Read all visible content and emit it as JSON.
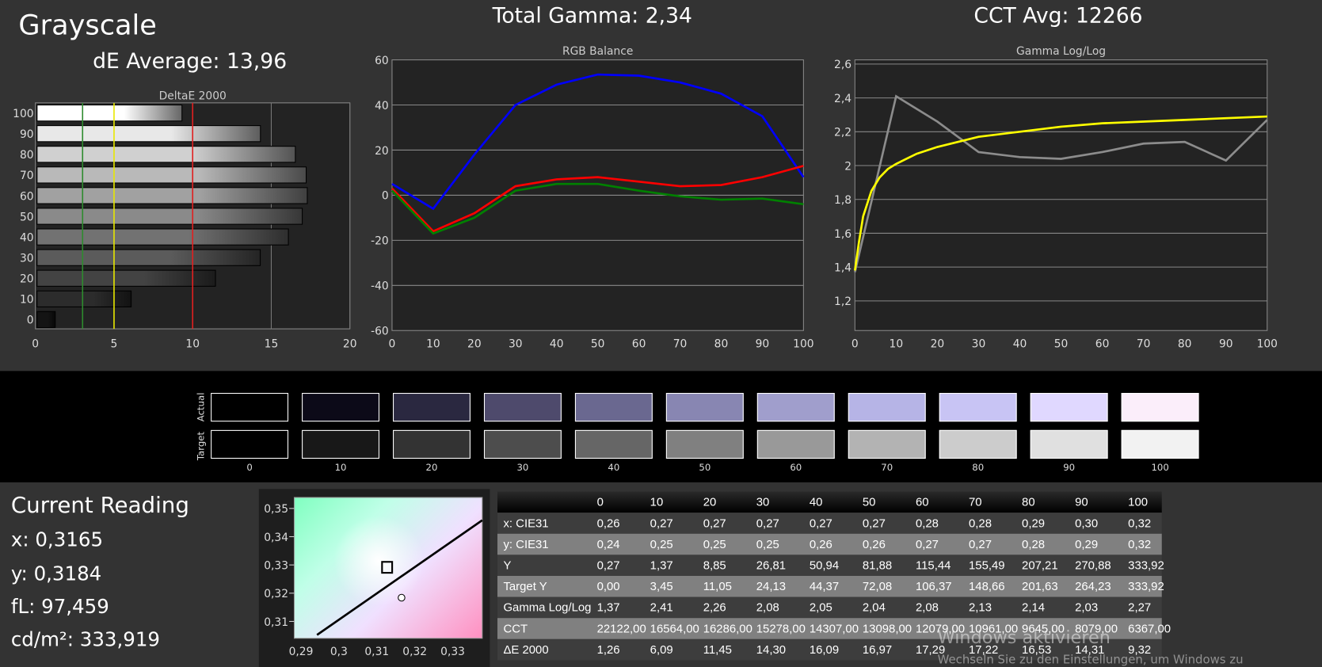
{
  "header": {
    "title": "Grayscale",
    "de_average": "dE Average: 13,96",
    "total_gamma": "Total Gamma: 2,34",
    "cct_avg": "CCT Avg: 12266"
  },
  "chart_data": [
    {
      "type": "bar",
      "orientation": "horizontal",
      "title": "DeltaE 2000",
      "categories": [
        "0",
        "10",
        "20",
        "30",
        "40",
        "50",
        "60",
        "70",
        "80",
        "90",
        "100"
      ],
      "values": [
        1.26,
        6.09,
        11.45,
        14.3,
        16.09,
        16.97,
        17.29,
        17.22,
        16.53,
        14.31,
        9.32
      ],
      "xlim": [
        0,
        20
      ],
      "xticks": [
        "0",
        "5",
        "10",
        "15",
        "20"
      ],
      "threshold_lines": [
        {
          "value": 3,
          "color": "#2e8b2e"
        },
        {
          "value": 5,
          "color": "#e8e800"
        },
        {
          "value": 10,
          "color": "#e02020"
        }
      ]
    },
    {
      "type": "line",
      "title": "RGB Balance",
      "x": [
        0,
        10,
        20,
        30,
        40,
        50,
        60,
        70,
        80,
        90,
        100
      ],
      "xlim": [
        0,
        100
      ],
      "ylim": [
        -60,
        60
      ],
      "xticks": [
        "0",
        "10",
        "20",
        "30",
        "40",
        "50",
        "60",
        "70",
        "80",
        "90",
        "100"
      ],
      "yticks": [
        "60",
        "40",
        "20",
        "0",
        "-20",
        "-40",
        "-60"
      ],
      "grid": true,
      "series": [
        {
          "color": "#0000ff",
          "values": [
            5,
            -6,
            18,
            40,
            49,
            53.5,
            53,
            50,
            45,
            35,
            8
          ]
        },
        {
          "color": "#ff0000",
          "values": [
            3,
            -16,
            -8,
            4,
            7,
            8,
            6,
            4,
            4.5,
            8,
            13
          ]
        },
        {
          "color": "#008000",
          "values": [
            2,
            -17,
            -10,
            2,
            5,
            5,
            2,
            -0.5,
            -2,
            -1.5,
            -4
          ]
        }
      ]
    },
    {
      "type": "line",
      "title": "Gamma Log/Log",
      "xlim": [
        0,
        100
      ],
      "ylim": [
        1.0,
        2.6
      ],
      "xticks": [
        "0",
        "10",
        "20",
        "30",
        "40",
        "50",
        "60",
        "70",
        "80",
        "90",
        "100"
      ],
      "yticks": [
        "2,6",
        "2,4",
        "2,2",
        "2",
        "1,8",
        "1,6",
        "1,4",
        "1,2"
      ],
      "grid": true,
      "series": [
        {
          "color": "#8c8c8c",
          "x": [
            0,
            10,
            20,
            30,
            40,
            50,
            60,
            70,
            80,
            90,
            100
          ],
          "values": [
            1.37,
            2.41,
            2.26,
            2.08,
            2.05,
            2.04,
            2.08,
            2.13,
            2.14,
            2.03,
            2.27
          ]
        },
        {
          "color": "#ffff00",
          "x": [
            0,
            1,
            2,
            4,
            6,
            8,
            10,
            15,
            20,
            30,
            40,
            50,
            60,
            70,
            80,
            90,
            100
          ],
          "values": [
            1.38,
            1.55,
            1.7,
            1.85,
            1.93,
            1.98,
            2.01,
            2.07,
            2.11,
            2.17,
            2.2,
            2.23,
            2.25,
            2.26,
            2.27,
            2.28,
            2.29
          ]
        }
      ]
    },
    {
      "type": "scatter",
      "title": "",
      "xlim": [
        0.285,
        0.34
      ],
      "ylim": [
        0.305,
        0.352
      ],
      "xticks": [
        "0,29",
        "0,3",
        "0,31",
        "0,32",
        "0,33"
      ],
      "yticks": [
        "0,35",
        "0,34",
        "0,33",
        "0,32",
        "0,31"
      ],
      "target": {
        "x": 0.3127,
        "y": 0.329
      },
      "measured": {
        "x": 0.3165,
        "y": 0.3184
      }
    }
  ],
  "swatches": {
    "actual_label": "Actual",
    "target_label": "Target",
    "levels": [
      "0",
      "10",
      "20",
      "30",
      "40",
      "50",
      "60",
      "70",
      "80",
      "90",
      "100"
    ],
    "actual": [
      "#000000",
      "#0c0a18",
      "#2a2840",
      "#4e4a6c",
      "#6a6890",
      "#8886b2",
      "#a09ecc",
      "#b6b4e6",
      "#c8c4f4",
      "#e0d8ff",
      "#fbeefa"
    ],
    "target": [
      "#000000",
      "#181818",
      "#333333",
      "#4d4d4d",
      "#666666",
      "#808080",
      "#999999",
      "#b3b3b3",
      "#cccccc",
      "#e0e0e0",
      "#f2f2f2"
    ]
  },
  "reading": {
    "title": "Current Reading",
    "x": "x: 0,3165",
    "y": "y: 0,3184",
    "fl": "fL: 97,459",
    "cdm2": "cd/m²: 333,919"
  },
  "table": {
    "headers": [
      "",
      "0",
      "10",
      "20",
      "30",
      "40",
      "50",
      "60",
      "70",
      "80",
      "90",
      "100"
    ],
    "rows": [
      [
        "x: CIE31",
        "0,26",
        "0,27",
        "0,27",
        "0,27",
        "0,27",
        "0,27",
        "0,28",
        "0,28",
        "0,29",
        "0,30",
        "0,32"
      ],
      [
        "y: CIE31",
        "0,24",
        "0,25",
        "0,25",
        "0,25",
        "0,26",
        "0,26",
        "0,27",
        "0,27",
        "0,28",
        "0,29",
        "0,32"
      ],
      [
        "Y",
        "0,27",
        "1,37",
        "8,85",
        "26,81",
        "50,94",
        "81,88",
        "115,44",
        "155,49",
        "207,21",
        "270,88",
        "333,92"
      ],
      [
        "Target Y",
        "0,00",
        "3,45",
        "11,05",
        "24,13",
        "44,37",
        "72,08",
        "106,37",
        "148,66",
        "201,63",
        "264,23",
        "333,92"
      ],
      [
        "Gamma Log/Log",
        "1,37",
        "2,41",
        "2,26",
        "2,08",
        "2,05",
        "2,04",
        "2,08",
        "2,13",
        "2,14",
        "2,03",
        "2,27"
      ],
      [
        "CCT",
        "22122,00",
        "16564,00",
        "16286,00",
        "15278,00",
        "14307,00",
        "13098,00",
        "12079,00",
        "10961,00",
        "9645,00",
        "8079,00",
        "6367,00"
      ],
      [
        "ΔE 2000",
        "1,26",
        "6,09",
        "11,45",
        "14,30",
        "16,09",
        "16,97",
        "17,29",
        "17,22",
        "16,53",
        "14,31",
        "9,32"
      ]
    ]
  },
  "watermark": {
    "line1": "Windows aktivieren",
    "line2": "Wechseln Sie zu den Einstellungen, um Windows zu"
  }
}
